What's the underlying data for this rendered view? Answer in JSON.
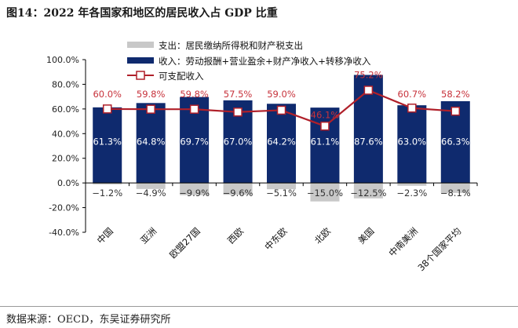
{
  "title": "图14：2022 年各国家和地区的居民收入占 GDP 比重",
  "source": "数据来源：OECD，东吴证券研究所",
  "chart_data": {
    "type": "bar",
    "categories": [
      "中国",
      "亚洲",
      "欧盟27国",
      "西欧",
      "中东欧",
      "北欧",
      "美国",
      "中南美洲",
      "38个国家平均"
    ],
    "series": [
      {
        "name": "支出：居民缴纳所得税和财产税支出",
        "kind": "bar",
        "color": "#c8c8c8",
        "values": [
          -1.2,
          -4.9,
          -9.9,
          -9.6,
          -5.1,
          -15.0,
          -12.5,
          -2.3,
          -8.1
        ]
      },
      {
        "name": "收入：劳动报酬+营业盈余+财产净收入+转移净收入",
        "kind": "bar",
        "color": "#0f2a6e",
        "values": [
          61.3,
          64.8,
          69.7,
          67.0,
          64.2,
          61.1,
          87.6,
          63.0,
          66.3
        ]
      },
      {
        "name": "可支配收入",
        "kind": "line",
        "color": "#b0202a",
        "values": [
          60.0,
          59.8,
          59.8,
          57.5,
          59.0,
          46.1,
          75.2,
          60.7,
          58.2
        ]
      }
    ],
    "ylim": [
      -40,
      100
    ],
    "yticks": [
      "-40.0%",
      "-20.0%",
      "0.0%",
      "20.0%",
      "40.0%",
      "60.0%",
      "80.0%",
      "100.0%"
    ],
    "legend": "top",
    "grid": false
  }
}
